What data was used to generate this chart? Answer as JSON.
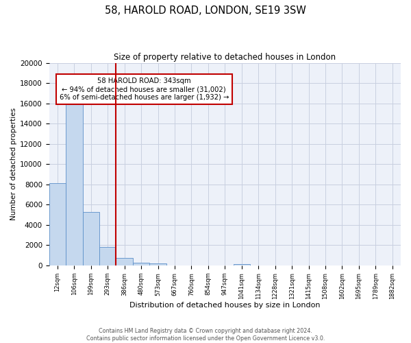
{
  "title": "58, HAROLD ROAD, LONDON, SE19 3SW",
  "subtitle": "Size of property relative to detached houses in London",
  "xlabel": "Distribution of detached houses by size in London",
  "ylabel": "Number of detached properties",
  "bin_labels": [
    "12sqm",
    "106sqm",
    "199sqm",
    "293sqm",
    "386sqm",
    "480sqm",
    "573sqm",
    "667sqm",
    "760sqm",
    "854sqm",
    "947sqm",
    "1041sqm",
    "1134sqm",
    "1228sqm",
    "1321sqm",
    "1415sqm",
    "1508sqm",
    "1602sqm",
    "1695sqm",
    "1789sqm",
    "1882sqm"
  ],
  "bar_values": [
    8100,
    16500,
    5300,
    1850,
    750,
    280,
    200,
    0,
    0,
    0,
    0,
    160,
    0,
    0,
    0,
    0,
    0,
    0,
    0,
    0,
    0
  ],
  "bar_color": "#c5d8ee",
  "bar_edge_color": "#5b8fc9",
  "vline_color": "#c00000",
  "annotation_title": "58 HAROLD ROAD: 343sqm",
  "annotation_line1": "← 94% of detached houses are smaller (31,002)",
  "annotation_line2": "6% of semi-detached houses are larger (1,932) →",
  "annotation_box_edge": "#c00000",
  "ylim": [
    0,
    20000
  ],
  "yticks": [
    0,
    2000,
    4000,
    6000,
    8000,
    10000,
    12000,
    14000,
    16000,
    18000,
    20000
  ],
  "footer_line1": "Contains HM Land Registry data © Crown copyright and database right 2024.",
  "footer_line2": "Contains public sector information licensed under the Open Government Licence v3.0.",
  "bg_color": "#edf1f9",
  "grid_color": "#c8cfe0"
}
